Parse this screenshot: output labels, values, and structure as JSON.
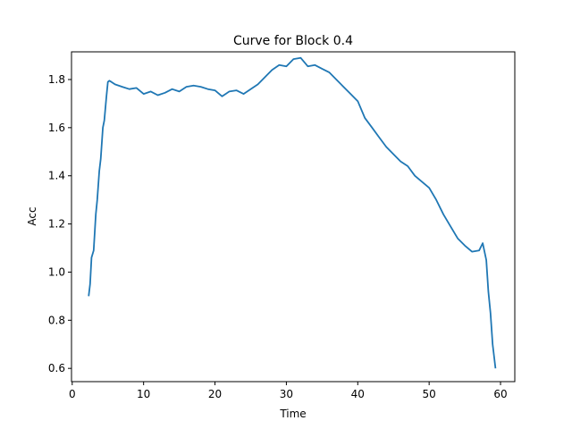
{
  "chart_data": {
    "type": "line",
    "title": "Curve for Block 0.4",
    "xlabel": "Time",
    "ylabel": "Acc",
    "xlim": [
      -0.1,
      62.0
    ],
    "ylim": [
      0.545,
      1.915
    ],
    "xticks": [
      0,
      10,
      20,
      30,
      40,
      50,
      60
    ],
    "yticks": [
      0.6,
      0.8,
      1.0,
      1.2,
      1.4,
      1.6,
      1.8
    ],
    "grid": false,
    "series": [
      {
        "color": "#1f77b4",
        "x": [
          2.3,
          2.5,
          2.7,
          3.0,
          3.3,
          3.5,
          3.8,
          4.0,
          4.3,
          4.5,
          4.8,
          5.0,
          5.2,
          5.5,
          6.0,
          7.0,
          8.0,
          9.0,
          10.0,
          11.0,
          12.0,
          13.0,
          14.0,
          15.0,
          16.0,
          17.0,
          18.0,
          19.0,
          20.0,
          21.0,
          22.0,
          23.0,
          24.0,
          25.0,
          26.0,
          27.0,
          28.0,
          29.0,
          30.0,
          31.0,
          32.0,
          33.0,
          34.0,
          35.0,
          36.0,
          37.0,
          38.0,
          39.0,
          40.0,
          41.0,
          42.0,
          43.0,
          44.0,
          45.0,
          46.0,
          47.0,
          48.0,
          49.0,
          50.0,
          51.0,
          52.0,
          53.0,
          54.0,
          55.0,
          56.0,
          57.0,
          57.5,
          58.0,
          58.3,
          58.6,
          58.9,
          59.1,
          59.3
        ],
        "y": [
          0.9,
          0.95,
          1.06,
          1.09,
          1.24,
          1.3,
          1.42,
          1.47,
          1.6,
          1.63,
          1.73,
          1.79,
          1.795,
          1.79,
          1.78,
          1.77,
          1.76,
          1.765,
          1.74,
          1.75,
          1.735,
          1.745,
          1.76,
          1.75,
          1.77,
          1.775,
          1.77,
          1.76,
          1.755,
          1.73,
          1.75,
          1.755,
          1.74,
          1.76,
          1.78,
          1.81,
          1.84,
          1.86,
          1.855,
          1.885,
          1.89,
          1.855,
          1.86,
          1.845,
          1.83,
          1.8,
          1.77,
          1.74,
          1.71,
          1.64,
          1.6,
          1.56,
          1.52,
          1.49,
          1.46,
          1.44,
          1.4,
          1.375,
          1.35,
          1.3,
          1.24,
          1.19,
          1.14,
          1.11,
          1.085,
          1.09,
          1.12,
          1.05,
          0.92,
          0.83,
          0.7,
          0.65,
          0.6
        ]
      }
    ]
  }
}
